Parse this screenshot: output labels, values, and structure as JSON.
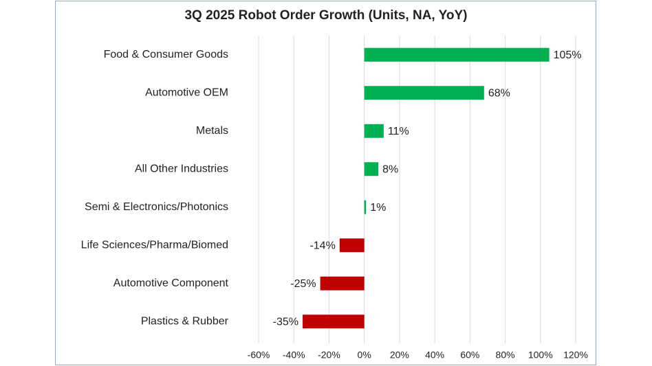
{
  "chart_data": {
    "type": "hbar",
    "title": "3Q 2025 Robot Order Growth (Units, NA, YoY)",
    "categories": [
      "Food & Consumer Goods",
      "Automotive OEM",
      "Metals",
      "All Other Industries",
      "Semi & Electronics/Photonics",
      "Life Sciences/Pharma/Biomed",
      "Automotive Component",
      "Plastics & Rubber"
    ],
    "values": [
      105,
      68,
      11,
      8,
      1,
      -14,
      -25,
      -35
    ],
    "value_labels": [
      "105%",
      "68%",
      "11%",
      "8%",
      "1%",
      "-14%",
      "-25%",
      "-35%"
    ],
    "positive_color": "#00b050",
    "negative_color": "#c00000",
    "xlim": [
      -60,
      120
    ],
    "xticks": [
      {
        "value": -60,
        "label": "-60%"
      },
      {
        "value": -40,
        "label": "-40%"
      },
      {
        "value": -20,
        "label": "-20%"
      },
      {
        "value": 0,
        "label": "0%"
      },
      {
        "value": 20,
        "label": "20%"
      },
      {
        "value": 40,
        "label": "40%"
      },
      {
        "value": 60,
        "label": "60%"
      },
      {
        "value": 80,
        "label": "80%"
      },
      {
        "value": 100,
        "label": "100%"
      },
      {
        "value": 120,
        "label": "120%"
      }
    ],
    "grid": true
  }
}
